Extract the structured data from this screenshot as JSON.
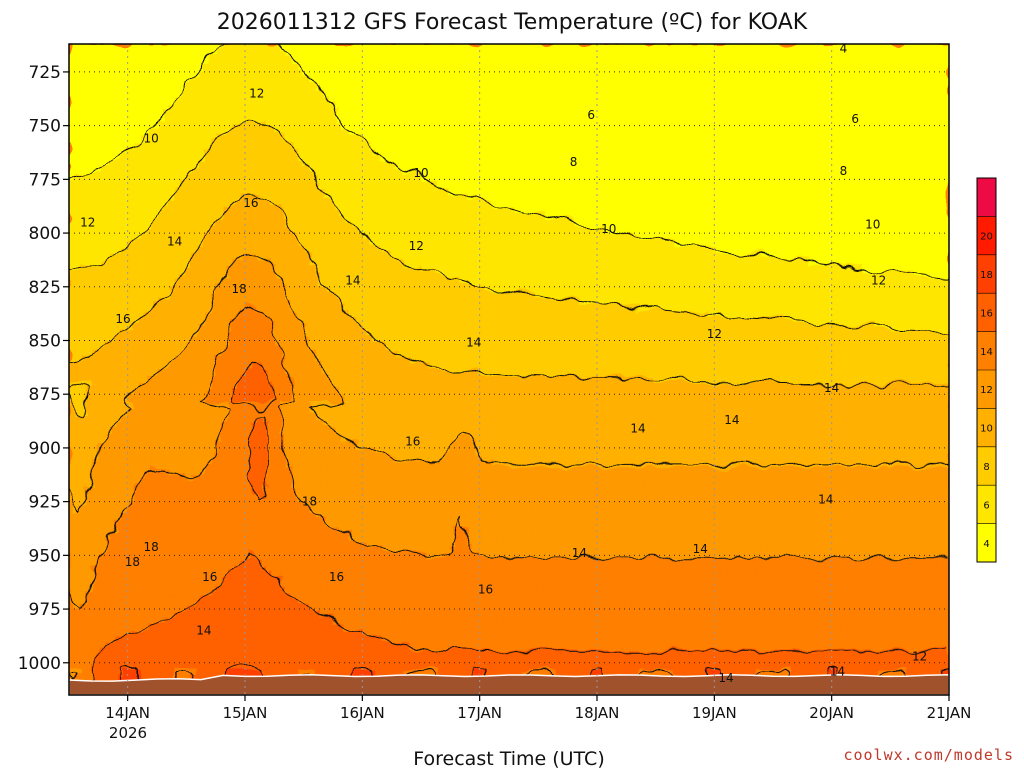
{
  "chart_data": {
    "type": "heatmap",
    "title": "2026011312 GFS Forecast Temperature (ºC) for KOAK",
    "xlabel": "Forecast Time (UTC)",
    "ylabel": "",
    "credit": "coolwx.com/models",
    "y_axis": {
      "ticks": [
        "725",
        "750",
        "775",
        "800",
        "825",
        "850",
        "875",
        "900",
        "925",
        "950",
        "975",
        "1000"
      ],
      "ylim": [
        1015,
        712
      ],
      "direction": "pressure decreasing upward"
    },
    "x_axis": {
      "ticks": [
        "14JAN",
        "15JAN",
        "16JAN",
        "17JAN",
        "18JAN",
        "19JAN",
        "20JAN",
        "21JAN"
      ],
      "year_label": "2026",
      "xlim_days": [
        13.5,
        21.0
      ]
    },
    "grid": true,
    "colorbar": {
      "labels": [
        "4",
        "6",
        "8",
        "10",
        "12",
        "14",
        "16",
        "18",
        "20"
      ],
      "levels": [
        2,
        4,
        6,
        8,
        10,
        12,
        14,
        16,
        18,
        20,
        22
      ],
      "colors": [
        "#ffff00",
        "#ffe600",
        "#ffcc00",
        "#ffb000",
        "#ff9900",
        "#ff7f00",
        "#ff6000",
        "#ff4000",
        "#ff1a00",
        "#ee0a45"
      ],
      "placement": "right"
    },
    "contour_labels": [
      {
        "v": "12",
        "d": 15.1,
        "p": 735
      },
      {
        "v": "10",
        "d": 14.2,
        "p": 756
      },
      {
        "v": "12",
        "d": 13.66,
        "p": 795
      },
      {
        "v": "14",
        "d": 14.4,
        "p": 804
      },
      {
        "v": "16",
        "d": 15.05,
        "p": 786
      },
      {
        "v": "18",
        "d": 14.95,
        "p": 826
      },
      {
        "v": "16",
        "d": 13.96,
        "p": 840
      },
      {
        "v": "14",
        "d": 15.92,
        "p": 822
      },
      {
        "v": "12",
        "d": 16.46,
        "p": 806
      },
      {
        "v": "10",
        "d": 16.5,
        "p": 772
      },
      {
        "v": "14",
        "d": 16.95,
        "p": 851
      },
      {
        "v": "16",
        "d": 16.43,
        "p": 897
      },
      {
        "v": "18",
        "d": 14.2,
        "p": 946
      },
      {
        "v": "18",
        "d": 14.04,
        "p": 953
      },
      {
        "v": "18",
        "d": 15.55,
        "p": 925
      },
      {
        "v": "16",
        "d": 14.7,
        "p": 960
      },
      {
        "v": "16",
        "d": 15.78,
        "p": 960
      },
      {
        "v": "14",
        "d": 14.65,
        "p": 985
      },
      {
        "v": "16",
        "d": 17.05,
        "p": 966
      },
      {
        "v": "6",
        "d": 17.95,
        "p": 745
      },
      {
        "v": "8",
        "d": 17.8,
        "p": 767
      },
      {
        "v": "10",
        "d": 18.1,
        "p": 798
      },
      {
        "v": "12",
        "d": 19.0,
        "p": 847
      },
      {
        "v": "14",
        "d": 18.35,
        "p": 891
      },
      {
        "v": "14",
        "d": 19.15,
        "p": 887
      },
      {
        "v": "14",
        "d": 20.0,
        "p": 872
      },
      {
        "v": "14",
        "d": 19.95,
        "p": 924
      },
      {
        "v": "14",
        "d": 18.88,
        "p": 947
      },
      {
        "v": "14",
        "d": 17.85,
        "p": 949
      },
      {
        "v": "14",
        "d": 20.05,
        "p": 1004
      },
      {
        "v": "14",
        "d": 19.1,
        "p": 1007
      },
      {
        "v": "12",
        "d": 20.75,
        "p": 997
      },
      {
        "v": "4",
        "d": 20.1,
        "p": 714
      },
      {
        "v": "6",
        "d": 20.2,
        "p": 747
      },
      {
        "v": "8",
        "d": 20.1,
        "p": 771
      },
      {
        "v": "10",
        "d": 20.35,
        "p": 796
      },
      {
        "v": "12",
        "d": 20.4,
        "p": 822
      }
    ]
  }
}
